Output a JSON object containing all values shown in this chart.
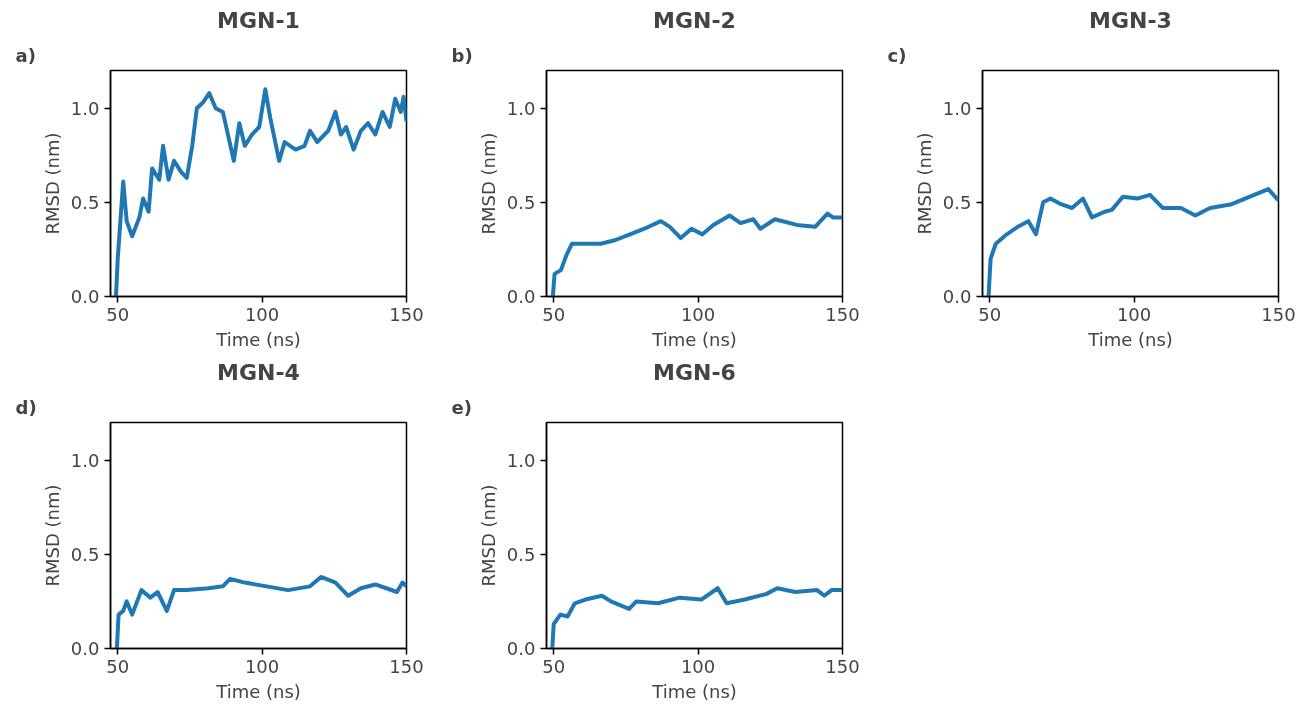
{
  "chart_data": [
    {
      "type": "line",
      "title": "MGN-1",
      "xlabel": "Time (ns)",
      "ylabel": "RMSD (nm)",
      "annotations": [
        "a)"
      ],
      "xlim": [
        47.5,
        150
      ],
      "ylim": [
        0,
        1.2
      ],
      "xticks": [
        50,
        100,
        150
      ],
      "yticks": [
        {
          "value": 0,
          "label": "0.0"
        },
        {
          "value": 0.5,
          "label": "0.5"
        },
        {
          "value": 1,
          "label": "1.0"
        }
      ],
      "grid": false,
      "series": [
        {
          "color": "#1f77b4",
          "x": [
            49.4,
            50,
            50.6,
            51.9,
            53.1,
            55,
            57.5,
            58.8,
            60.7,
            61.9,
            64.4,
            65.7,
            67.6,
            69.5,
            72,
            73.9,
            75.8,
            77.4,
            79.5,
            81.7,
            83.9,
            86.4,
            88.3,
            90.2,
            92.1,
            94,
            96.5,
            99,
            101.1,
            102.8,
            105.9,
            107.8,
            111.6,
            114.7,
            116.6,
            119.1,
            122.9,
            125.4,
            127.3,
            129.1,
            131.7,
            134.2,
            136.7,
            139.2,
            141.7,
            144.2,
            146.1,
            148,
            149,
            150
          ],
          "values": [
            0,
            0.2,
            0.33,
            0.61,
            0.4,
            0.32,
            0.42,
            0.52,
            0.45,
            0.68,
            0.62,
            0.8,
            0.62,
            0.72,
            0.66,
            0.63,
            0.8,
            1.0,
            1.03,
            1.08,
            1.0,
            0.98,
            0.85,
            0.72,
            0.92,
            0.8,
            0.86,
            0.9,
            1.1,
            0.95,
            0.72,
            0.82,
            0.78,
            0.8,
            0.88,
            0.82,
            0.88,
            0.98,
            0.86,
            0.9,
            0.78,
            0.88,
            0.92,
            0.86,
            0.98,
            0.9,
            1.05,
            0.98,
            1.06,
            0.93
          ]
        }
      ]
    },
    {
      "type": "line",
      "title": "MGN-2",
      "xlabel": "Time (ns)",
      "ylabel": "RMSD (nm)",
      "annotations": [
        "b)"
      ],
      "xlim": [
        47.5,
        150
      ],
      "ylim": [
        0,
        1.2
      ],
      "xticks": [
        50,
        100,
        150
      ],
      "yticks": [
        {
          "value": 0,
          "label": "0.0"
        },
        {
          "value": 0.5,
          "label": "0.5"
        },
        {
          "value": 1,
          "label": "1.0"
        }
      ],
      "grid": false,
      "series": [
        {
          "color": "#1f77b4",
          "x": [
            49.7,
            50.3,
            52.5,
            54.4,
            56.3,
            60,
            66.3,
            71.4,
            76.4,
            81.4,
            87.1,
            90.2,
            94,
            97.7,
            101.5,
            105.3,
            110.9,
            114.7,
            119.1,
            121.6,
            126.6,
            134.2,
            140.5,
            144.8,
            146.7,
            150
          ],
          "values": [
            0,
            0.12,
            0.14,
            0.22,
            0.28,
            0.28,
            0.28,
            0.3,
            0.33,
            0.36,
            0.4,
            0.37,
            0.31,
            0.36,
            0.33,
            0.38,
            0.43,
            0.39,
            0.41,
            0.36,
            0.41,
            0.38,
            0.37,
            0.44,
            0.42,
            0.42
          ]
        }
      ]
    },
    {
      "type": "line",
      "title": "MGN-3",
      "xlabel": "Time (ns)",
      "ylabel": "RMSD (nm)",
      "annotations": [
        "c)"
      ],
      "xlim": [
        47.5,
        150
      ],
      "ylim": [
        0,
        1.2
      ],
      "xticks": [
        50,
        100,
        150
      ],
      "yticks": [
        {
          "value": 0,
          "label": "0.0"
        },
        {
          "value": 0.5,
          "label": "0.5"
        },
        {
          "value": 1,
          "label": "1.0"
        }
      ],
      "grid": false,
      "series": [
        {
          "color": "#1f77b4",
          "x": [
            49.6,
            50.3,
            52.1,
            55.9,
            59.7,
            63.4,
            66,
            68.5,
            71,
            74.7,
            78.5,
            82.3,
            85.4,
            89.8,
            92.3,
            96.1,
            101.1,
            105.5,
            109.9,
            116.2,
            121.2,
            126.3,
            133.8,
            140.1,
            146.5,
            150
          ],
          "values": [
            0,
            0.2,
            0.28,
            0.33,
            0.37,
            0.4,
            0.33,
            0.5,
            0.52,
            0.49,
            0.47,
            0.52,
            0.42,
            0.45,
            0.46,
            0.53,
            0.52,
            0.54,
            0.47,
            0.47,
            0.43,
            0.47,
            0.49,
            0.53,
            0.57,
            0.51
          ]
        }
      ]
    },
    {
      "type": "line",
      "title": "MGN-4",
      "xlabel": "Time (ns)",
      "ylabel": "RMSD (nm)",
      "annotations": [
        "d)"
      ],
      "xlim": [
        47.5,
        150
      ],
      "ylim": [
        0,
        1.2
      ],
      "xticks": [
        50,
        100,
        150
      ],
      "yticks": [
        {
          "value": 0,
          "label": "0.0"
        },
        {
          "value": 0.5,
          "label": "0.5"
        },
        {
          "value": 1,
          "label": "1.0"
        }
      ],
      "grid": false,
      "series": [
        {
          "color": "#1f77b4",
          "x": [
            49.7,
            50.3,
            51.9,
            53.1,
            55,
            58.2,
            61.3,
            63.8,
            67,
            69.5,
            73.9,
            81.4,
            86.4,
            88.9,
            94,
            101.5,
            109,
            116.6,
            120.4,
            125.4,
            129.8,
            134.2,
            139.2,
            146.7,
            148.6,
            150
          ],
          "values": [
            0,
            0.18,
            0.2,
            0.25,
            0.18,
            0.31,
            0.27,
            0.3,
            0.2,
            0.31,
            0.31,
            0.32,
            0.33,
            0.37,
            0.35,
            0.33,
            0.31,
            0.33,
            0.38,
            0.35,
            0.28,
            0.32,
            0.34,
            0.3,
            0.35,
            0.33
          ]
        }
      ]
    },
    {
      "type": "line",
      "title": "MGN-6",
      "xlabel": "Time (ns)",
      "ylabel": "RMSD (nm)",
      "annotations": [
        "e)"
      ],
      "xlim": [
        47.5,
        150
      ],
      "ylim": [
        0,
        1.2
      ],
      "xticks": [
        50,
        100,
        150
      ],
      "yticks": [
        {
          "value": 0,
          "label": "0.0"
        },
        {
          "value": 0.5,
          "label": "0.5"
        },
        {
          "value": 1,
          "label": "1.0"
        }
      ],
      "grid": false,
      "series": [
        {
          "color": "#1f77b4",
          "x": [
            49.5,
            50,
            52.3,
            54.8,
            57.3,
            61,
            66.7,
            69.8,
            76.1,
            78.6,
            86.1,
            93.6,
            101.1,
            106.8,
            109.9,
            116.2,
            123.7,
            127.4,
            133.7,
            141.2,
            143.7,
            146.2,
            150
          ],
          "values": [
            0,
            0.13,
            0.18,
            0.17,
            0.24,
            0.26,
            0.28,
            0.25,
            0.21,
            0.25,
            0.24,
            0.27,
            0.26,
            0.32,
            0.24,
            0.26,
            0.29,
            0.32,
            0.3,
            0.31,
            0.28,
            0.31,
            0.31
          ]
        }
      ]
    }
  ]
}
